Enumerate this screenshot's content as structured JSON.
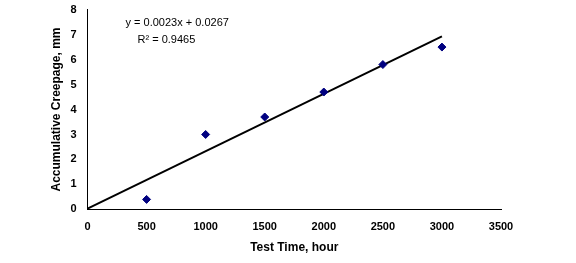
{
  "chart_data": {
    "type": "scatter",
    "x_label": "Test Time, hour",
    "y_label": "Accumulative Creepage, mm",
    "annotations": [
      "y = 0.0023x + 0.0267",
      "R² = 0.9465"
    ],
    "series": [
      {
        "type": "scatter",
        "color": "#000080",
        "marker": "diamond",
        "x": [
          500,
          1000,
          1500,
          2000,
          2500,
          3000
        ],
        "values": [
          0.4,
          3.0,
          3.7,
          4.7,
          5.8,
          6.5
        ]
      },
      {
        "type": "line",
        "color": "#000000",
        "line_style": "solid",
        "x": [
          0,
          3000
        ],
        "values": [
          0.03,
          6.93
        ]
      }
    ],
    "xlim": [
      0,
      3500
    ],
    "xticks": [
      0,
      500,
      1000,
      1500,
      2000,
      2500,
      3000,
      3500
    ],
    "ylim": [
      0,
      8
    ],
    "yticks": [
      0,
      1,
      2,
      3,
      4,
      5,
      6,
      7,
      8
    ],
    "grid": false
  }
}
